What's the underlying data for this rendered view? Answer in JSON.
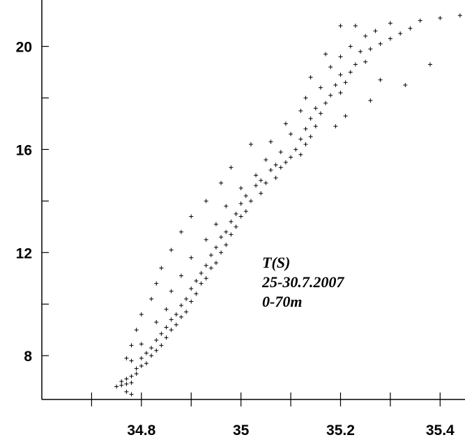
{
  "chart_data": {
    "type": "scatter",
    "title": "",
    "xlabel": "",
    "ylabel": "",
    "xlim": [
      34.6,
      35.45
    ],
    "ylim": [
      6.3,
      21.8
    ],
    "xticks": [
      34.8,
      35,
      35.2,
      35.4
    ],
    "xtick_labels": [
      "34.8",
      "35",
      "35.2",
      "35.4"
    ],
    "xminor_step": 0.1,
    "yticks": [
      8,
      12,
      16,
      20
    ],
    "ytick_labels": [
      "8",
      "12",
      "16",
      "20"
    ],
    "yminor_step": 2,
    "grid": false,
    "marker": "+",
    "annotations": [
      "T(S)",
      "25-30.7.2007",
      "0-70m"
    ],
    "series": [
      {
        "points": [
          [
            34.75,
            6.8
          ],
          [
            34.76,
            6.85
          ],
          [
            34.77,
            6.9
          ],
          [
            34.78,
            6.95
          ],
          [
            34.76,
            7.0
          ],
          [
            34.77,
            7.1
          ],
          [
            34.78,
            7.2
          ],
          [
            34.79,
            7.3
          ],
          [
            34.77,
            6.6
          ],
          [
            34.78,
            6.5
          ],
          [
            34.79,
            7.5
          ],
          [
            34.8,
            7.6
          ],
          [
            34.81,
            7.7
          ],
          [
            34.78,
            7.8
          ],
          [
            34.8,
            7.9
          ],
          [
            34.82,
            8.0
          ],
          [
            34.81,
            8.1
          ],
          [
            34.83,
            8.2
          ],
          [
            34.82,
            8.3
          ],
          [
            34.84,
            8.4
          ],
          [
            34.8,
            8.45
          ],
          [
            34.83,
            8.6
          ],
          [
            34.85,
            8.7
          ],
          [
            34.84,
            8.85
          ],
          [
            34.86,
            9.0
          ],
          [
            34.85,
            9.1
          ],
          [
            34.87,
            9.2
          ],
          [
            34.83,
            9.3
          ],
          [
            34.86,
            9.4
          ],
          [
            34.88,
            9.5
          ],
          [
            34.87,
            9.6
          ],
          [
            34.89,
            9.7
          ],
          [
            34.85,
            9.8
          ],
          [
            34.88,
            9.95
          ],
          [
            34.9,
            10.1
          ],
          [
            34.89,
            10.2
          ],
          [
            34.91,
            10.4
          ],
          [
            34.86,
            10.5
          ],
          [
            34.9,
            10.6
          ],
          [
            34.92,
            10.8
          ],
          [
            34.91,
            10.9
          ],
          [
            34.93,
            11.0
          ],
          [
            34.88,
            11.1
          ],
          [
            34.92,
            11.2
          ],
          [
            34.94,
            11.4
          ],
          [
            34.93,
            11.5
          ],
          [
            34.95,
            11.6
          ],
          [
            34.9,
            11.8
          ],
          [
            34.94,
            11.9
          ],
          [
            34.96,
            12.0
          ],
          [
            34.95,
            12.2
          ],
          [
            34.97,
            12.3
          ],
          [
            34.93,
            12.5
          ],
          [
            34.96,
            12.6
          ],
          [
            34.98,
            12.7
          ],
          [
            34.97,
            12.8
          ],
          [
            34.99,
            13.0
          ],
          [
            34.95,
            13.1
          ],
          [
            34.98,
            13.2
          ],
          [
            35.0,
            13.4
          ],
          [
            34.99,
            13.5
          ],
          [
            35.01,
            13.6
          ],
          [
            34.97,
            13.8
          ],
          [
            35.0,
            13.9
          ],
          [
            35.02,
            14.0
          ],
          [
            35.01,
            14.2
          ],
          [
            35.04,
            14.3
          ],
          [
            35.0,
            14.5
          ],
          [
            35.03,
            14.6
          ],
          [
            35.05,
            14.7
          ],
          [
            35.04,
            14.8
          ],
          [
            35.07,
            14.9
          ],
          [
            35.03,
            15.0
          ],
          [
            35.06,
            15.2
          ],
          [
            35.08,
            15.3
          ],
          [
            35.07,
            15.4
          ],
          [
            35.09,
            15.5
          ],
          [
            35.05,
            15.6
          ],
          [
            35.1,
            15.7
          ],
          [
            35.12,
            15.8
          ],
          [
            35.08,
            15.9
          ],
          [
            35.11,
            16.0
          ],
          [
            35.13,
            16.2
          ],
          [
            35.06,
            16.3
          ],
          [
            35.12,
            16.4
          ],
          [
            35.14,
            16.5
          ],
          [
            35.1,
            16.6
          ],
          [
            35.13,
            16.8
          ],
          [
            35.15,
            16.9
          ],
          [
            35.09,
            17.0
          ],
          [
            35.14,
            17.2
          ],
          [
            35.16,
            17.4
          ],
          [
            35.12,
            17.5
          ],
          [
            35.15,
            17.6
          ],
          [
            35.17,
            17.8
          ],
          [
            35.13,
            18.0
          ],
          [
            35.18,
            18.1
          ],
          [
            35.2,
            18.2
          ],
          [
            35.16,
            18.4
          ],
          [
            35.19,
            18.5
          ],
          [
            35.21,
            18.6
          ],
          [
            35.14,
            18.8
          ],
          [
            35.2,
            18.9
          ],
          [
            35.22,
            19.0
          ],
          [
            35.18,
            19.2
          ],
          [
            35.23,
            19.3
          ],
          [
            35.25,
            19.4
          ],
          [
            35.2,
            19.6
          ],
          [
            35.17,
            19.7
          ],
          [
            35.24,
            19.8
          ],
          [
            35.26,
            19.9
          ],
          [
            35.22,
            20.0
          ],
          [
            35.28,
            20.1
          ],
          [
            35.3,
            20.3
          ],
          [
            35.25,
            20.4
          ],
          [
            35.32,
            20.5
          ],
          [
            35.27,
            20.6
          ],
          [
            35.34,
            20.7
          ],
          [
            35.2,
            20.8
          ],
          [
            35.23,
            20.8
          ],
          [
            35.3,
            20.9
          ],
          [
            35.36,
            21.0
          ],
          [
            35.4,
            21.1
          ],
          [
            35.44,
            21.2
          ],
          [
            35.28,
            18.7
          ],
          [
            35.33,
            18.5
          ],
          [
            35.38,
            19.3
          ],
          [
            35.26,
            17.9
          ],
          [
            35.21,
            17.3
          ],
          [
            35.19,
            16.9
          ],
          [
            35.02,
            16.2
          ],
          [
            34.98,
            15.3
          ],
          [
            34.96,
            14.7
          ],
          [
            34.93,
            14.0
          ],
          [
            34.9,
            13.4
          ],
          [
            34.88,
            12.8
          ],
          [
            34.86,
            12.1
          ],
          [
            34.84,
            11.4
          ],
          [
            34.83,
            10.8
          ],
          [
            34.82,
            10.2
          ],
          [
            34.8,
            9.6
          ],
          [
            34.79,
            9.0
          ],
          [
            34.78,
            8.4
          ],
          [
            34.77,
            7.9
          ]
        ]
      }
    ]
  }
}
